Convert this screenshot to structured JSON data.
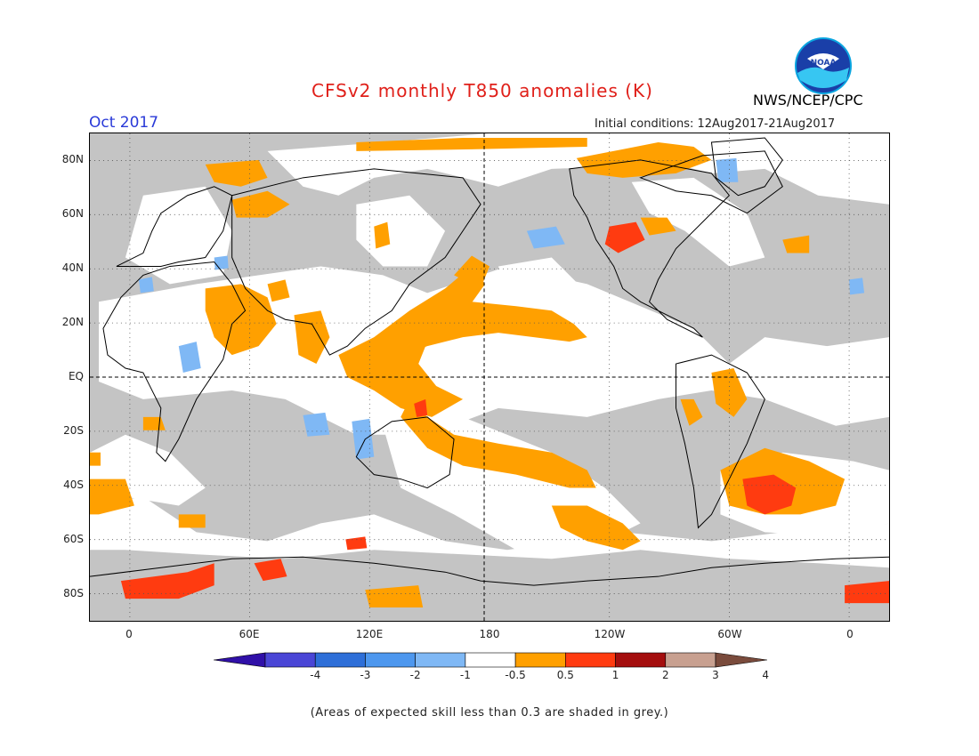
{
  "header": {
    "title": "CFSv2 monthly T850 anomalies (K)",
    "valid_month": "Oct 2017",
    "initial_conditions": "Initial conditions: 12Aug2017-21Aug2017",
    "agency": "NWS/NCEP/CPC",
    "logo_text": "NOAA"
  },
  "map": {
    "lat_labels": [
      "80N",
      "60N",
      "40N",
      "20N",
      "EQ",
      "20S",
      "40S",
      "60S",
      "80S"
    ],
    "lat_values": [
      80,
      60,
      40,
      20,
      0,
      -20,
      -40,
      -60,
      -80
    ],
    "lon_labels": [
      "0",
      "60E",
      "120E",
      "180",
      "120W",
      "60W",
      "0"
    ],
    "lon_values": [
      0,
      60,
      120,
      180,
      240,
      300,
      360
    ],
    "lon_range": [
      -20,
      380
    ],
    "lat_range": [
      -90,
      90
    ],
    "grey_color": "#c4c4c4",
    "land_outline_color": "#000000"
  },
  "colorbar": {
    "labels": [
      "-4",
      "-3",
      "-2",
      "-1",
      "-0.5",
      "0.5",
      "1",
      "2",
      "3",
      "4"
    ],
    "colors": [
      "#3010a8",
      "#4a46d6",
      "#2e6fd8",
      "#4d97ee",
      "#7fb8f5",
      "#ffffff",
      "#ffa000",
      "#ff3b10",
      "#a40e0e",
      "#c8a090",
      "#7a4b3c"
    ]
  },
  "footnote": "(Areas of expected skill less than 0.3 are shaded in grey.)"
}
